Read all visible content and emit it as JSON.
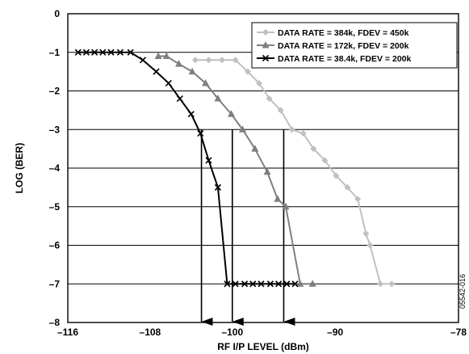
{
  "chart_data": {
    "type": "line",
    "xlabel": "RF I/P LEVEL (dBm)",
    "ylabel": "LOG (BER)",
    "xlim": [
      -116,
      -78
    ],
    "ylim": [
      -8,
      0
    ],
    "xticks": [
      -116,
      -108,
      -100,
      -90,
      -78
    ],
    "xtick_labels": [
      "–116",
      "–108",
      "–100",
      "–90",
      "–78"
    ],
    "yticks": [
      0,
      -1,
      -2,
      -3,
      -4,
      -5,
      -6,
      -7,
      -8
    ],
    "ytick_labels": [
      "0",
      "–1",
      "–2",
      "–3",
      "–4",
      "–5",
      "–6",
      "–7",
      "–8"
    ],
    "grid": "horizontal",
    "legend_position": "top-right",
    "figure_id": "05542-016",
    "series": [
      {
        "name": "DATA RATE = 384k, FDEV = 450k",
        "color": "#c0c0c0",
        "marker": "diamond",
        "x": [
          -103.6,
          -102.3,
          -101.0,
          -99.7,
          -98.5,
          -97.4,
          -96.4,
          -95.3,
          -94.2,
          -93.1,
          -92.1,
          -91.0,
          -89.9,
          -88.8,
          -87.8,
          -87.0,
          -86.6,
          -85.6,
          -84.5
        ],
        "y": [
          -1.2,
          -1.2,
          -1.2,
          -1.2,
          -1.5,
          -1.8,
          -2.2,
          -2.5,
          -3.0,
          -3.1,
          -3.5,
          -3.8,
          -4.2,
          -4.5,
          -4.8,
          -5.7,
          -6.0,
          -7.0,
          -7.0
        ]
      },
      {
        "name": "DATA RATE = 172k, FDEV = 200k",
        "color": "#7f7f7f",
        "marker": "triangle",
        "x": [
          -107.2,
          -106.4,
          -105.2,
          -103.9,
          -102.6,
          -101.4,
          -100.1,
          -99.0,
          -97.8,
          -96.6,
          -95.6,
          -94.8,
          -93.4,
          -92.2
        ],
        "y": [
          -1.1,
          -1.1,
          -1.3,
          -1.5,
          -1.8,
          -2.2,
          -2.6,
          -3.0,
          -3.5,
          -4.1,
          -4.8,
          -5.0,
          -7.0,
          -7.0
        ]
      },
      {
        "name": "DATA RATE = 38.4k, FDEV = 200k",
        "color": "#000000",
        "marker": "x",
        "x": [
          -115.0,
          -114.2,
          -113.4,
          -112.6,
          -111.8,
          -110.9,
          -109.9,
          -108.7,
          -107.4,
          -106.2,
          -105.1,
          -104.0,
          -103.1,
          -102.3,
          -101.4,
          -100.5,
          -99.7,
          -98.8,
          -98.0,
          -97.2,
          -96.3,
          -95.5,
          -94.7,
          -93.9
        ],
        "y": [
          -1.0,
          -1.0,
          -1.0,
          -1.0,
          -1.0,
          -1.0,
          -1.0,
          -1.2,
          -1.5,
          -1.8,
          -2.2,
          -2.6,
          -3.1,
          -3.8,
          -4.5,
          -7.0,
          -7.0,
          -7.0,
          -7.0,
          -7.0,
          -7.0,
          -7.0,
          -7.0,
          -7.0
        ]
      }
    ],
    "arrows": [
      {
        "x": -103.0,
        "y_from": -3.0,
        "y_to": -8.0
      },
      {
        "x": -100.0,
        "y_from": -3.0,
        "y_to": -8.0
      },
      {
        "x": -95.0,
        "y_from": -3.0,
        "y_to": -8.0
      }
    ]
  }
}
